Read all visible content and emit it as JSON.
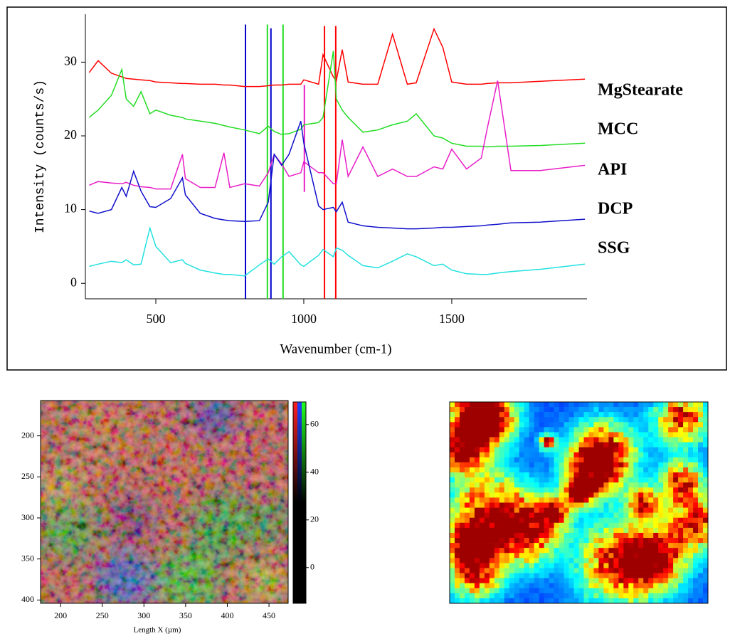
{
  "chart_data": [
    {
      "type": "line",
      "xlabel": "Wavenumber (cm-1)",
      "ylabel": "Intensity (counts/s)",
      "xlim": [
        262,
        1957
      ],
      "ylim": [
        -2.1,
        36.5
      ],
      "xticks": [
        500,
        1000,
        1500
      ],
      "yticks": [
        0,
        10,
        20,
        30
      ],
      "x": [
        275,
        305,
        350,
        385,
        400,
        425,
        450,
        480,
        500,
        550,
        590,
        600,
        650,
        700,
        730,
        750,
        800,
        850,
        880,
        900,
        925,
        950,
        990,
        1000,
        1050,
        1065,
        1100,
        1110,
        1130,
        1150,
        1200,
        1250,
        1300,
        1350,
        1380,
        1440,
        1470,
        1500,
        1550,
        1600,
        1620,
        1655,
        1700,
        1800,
        1950
      ],
      "series": [
        {
          "name": "MgStearate",
          "color": "#ff0000",
          "values": [
            28.6,
            30.2,
            28.5,
            28.0,
            27.8,
            27.7,
            27.6,
            27.5,
            27.3,
            27.2,
            27.1,
            27.1,
            27.0,
            27.0,
            26.9,
            26.9,
            26.7,
            26.7,
            26.8,
            26.9,
            26.9,
            27.0,
            27.0,
            27.6,
            27.0,
            31.0,
            28.0,
            27.5,
            31.7,
            27.3,
            27.0,
            27.0,
            33.8,
            27.0,
            27.2,
            34.5,
            32.0,
            27.3,
            27.0,
            27.0,
            27.1,
            27.2,
            27.2,
            27.4,
            27.7
          ]
        },
        {
          "name": "MCC",
          "color": "#22dd22",
          "values": [
            22.5,
            23.5,
            25.5,
            29.0,
            25.0,
            24.0,
            26.0,
            23.0,
            23.5,
            22.8,
            22.5,
            22.3,
            22.0,
            21.7,
            21.4,
            21.2,
            20.8,
            20.3,
            21.3,
            20.6,
            20.2,
            20.3,
            20.9,
            21.5,
            21.8,
            22.5,
            31.5,
            25.0,
            23.5,
            22.5,
            20.5,
            20.8,
            21.5,
            22.0,
            23.0,
            20.0,
            19.7,
            19.0,
            18.6,
            18.6,
            18.5,
            18.6,
            18.6,
            18.7,
            19.0
          ]
        },
        {
          "name": "API",
          "color": "#e81ec8",
          "values": [
            13.3,
            13.8,
            13.6,
            13.5,
            13.7,
            13.3,
            13.1,
            13.0,
            12.8,
            12.8,
            17.5,
            14.2,
            13.0,
            13.0,
            17.7,
            13.0,
            13.5,
            13.2,
            15.0,
            17.5,
            16.2,
            14.5,
            15.0,
            16.5,
            15.0,
            15.0,
            13.5,
            13.5,
            19.5,
            14.5,
            18.5,
            14.5,
            15.5,
            14.5,
            14.5,
            15.8,
            15.5,
            18.2,
            15.5,
            17.0,
            21.0,
            27.5,
            15.3,
            15.3,
            16.0
          ]
        },
        {
          "name": "DCP",
          "color": "#1010cc",
          "values": [
            9.8,
            9.5,
            10.0,
            13.0,
            11.8,
            15.2,
            12.5,
            10.4,
            10.3,
            11.5,
            14.3,
            12.0,
            9.5,
            8.8,
            8.6,
            8.5,
            8.4,
            8.5,
            11.0,
            17.5,
            16.0,
            17.5,
            22.0,
            19.0,
            10.5,
            10.0,
            10.3,
            9.7,
            11.0,
            8.3,
            7.8,
            7.6,
            7.5,
            7.4,
            7.4,
            7.5,
            7.6,
            7.6,
            7.7,
            7.8,
            7.9,
            8.0,
            8.2,
            8.3,
            8.7
          ]
        },
        {
          "name": "SSG",
          "color": "#22e0e0",
          "values": [
            2.3,
            2.6,
            3.0,
            2.8,
            3.2,
            2.5,
            2.6,
            7.5,
            5.0,
            2.8,
            3.2,
            2.7,
            1.8,
            1.4,
            1.2,
            1.2,
            1.0,
            2.5,
            3.3,
            2.6,
            3.6,
            4.3,
            2.5,
            2.3,
            3.8,
            4.6,
            3.6,
            4.8,
            4.5,
            3.8,
            2.4,
            2.1,
            3.0,
            4.0,
            3.6,
            2.4,
            2.6,
            1.8,
            1.3,
            1.2,
            1.2,
            1.4,
            1.6,
            1.9,
            2.6
          ]
        }
      ],
      "vlines": [
        {
          "x": 803,
          "color": "#0000cc",
          "y": [
            -2.1,
            35.1
          ]
        },
        {
          "x": 877,
          "color": "#22dd22",
          "y": [
            -2.1,
            35.1
          ]
        },
        {
          "x": 889,
          "color": "#0000cc",
          "y": [
            -2.1,
            34.6
          ]
        },
        {
          "x": 930,
          "color": "#22dd22",
          "y": [
            -2.1,
            35.1
          ]
        },
        {
          "x": 1002,
          "color": "#e81ec8",
          "y": [
            12.4,
            26.9
          ]
        },
        {
          "x": 1070,
          "color": "#ff0000",
          "y": [
            -2.1,
            34.9
          ]
        },
        {
          "x": 1108,
          "color": "#ff0000",
          "y": [
            -2.1,
            34.9
          ]
        }
      ]
    },
    {
      "type": "image",
      "xlabel": "Length X (µm)",
      "xlim": [
        176,
        473
      ],
      "xticks": [
        200,
        250,
        300,
        350,
        400,
        450
      ],
      "ylim": [
        157,
        404
      ],
      "yticks": [
        200,
        250,
        300,
        350,
        400
      ],
      "colorbar": {
        "lim": [
          -15,
          69.5
        ],
        "ticks": [
          0,
          20,
          40,
          60
        ]
      }
    }
  ]
}
